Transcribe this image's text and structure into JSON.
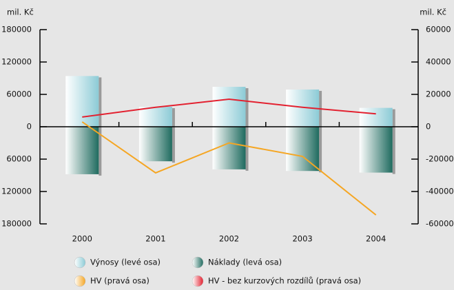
{
  "chart_data": {
    "type": "bar_line",
    "ylabel": "mil. Kč",
    "y2label": "mil. Kč",
    "categories": [
      "2000",
      "2001",
      "2002",
      "2003",
      "2004"
    ],
    "series": [
      {
        "name": "Výnosy (levé osa)",
        "color": "#8ccbd6",
        "kind": "bar",
        "values": [
          94000,
          37000,
          74000,
          69000,
          35000
        ]
      },
      {
        "name": "Náklady (levá osa)",
        "color": "#1f6b5f",
        "kind": "bar",
        "values": [
          -88000,
          -64000,
          -79000,
          -82000,
          -85000
        ]
      },
      {
        "name": "HV (pravá osa)",
        "color": "#f5a623",
        "kind": "line",
        "axis": "y2",
        "values": [
          3000,
          -28500,
          -10000,
          -18300,
          -54500
        ]
      },
      {
        "name": "HV - bez kurzových rozdílů (pravá osa)",
        "color": "#e3202f",
        "kind": "line",
        "axis": "y2",
        "values": [
          6000,
          12000,
          17000,
          12000,
          8000
        ]
      }
    ],
    "ylim": [
      -180000,
      180000
    ],
    "yticks": [
      180000,
      120000,
      60000,
      0,
      {
        "value": -60000,
        "label": "60000"
      },
      {
        "value": -120000,
        "label": "120000"
      },
      {
        "value": -180000,
        "label": "180000"
      }
    ],
    "y2lim": [
      -60000,
      60000
    ],
    "y2ticks": [
      60000,
      40000,
      20000,
      0,
      -20000,
      -40000,
      -60000
    ]
  }
}
